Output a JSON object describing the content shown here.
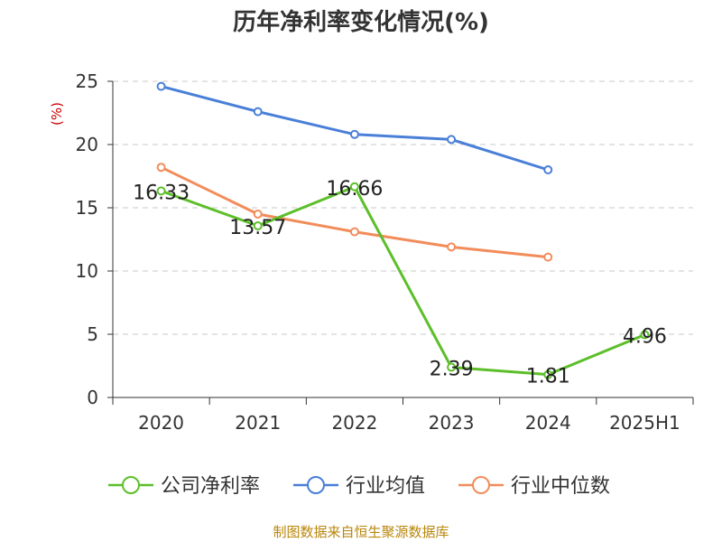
{
  "chart_data": {
    "type": "line",
    "title": "历年净利率变化情况(%)",
    "ylabel": "(%)",
    "xlabel": "",
    "categories": [
      "2020",
      "2021",
      "2022",
      "2023",
      "2024",
      "2025H1"
    ],
    "ylim": [
      0,
      25
    ],
    "yticks": [
      "0",
      "5",
      "10",
      "15",
      "20",
      "25"
    ],
    "grid": true,
    "legend_position": "bottom",
    "series": [
      {
        "name": "公司净利率",
        "color": "#5cbf2a",
        "values": [
          16.33,
          13.57,
          16.66,
          2.39,
          1.81,
          4.96
        ],
        "labels": [
          "16.33",
          "13.57",
          "16.66",
          "2.39",
          "1.81",
          "4.96"
        ]
      },
      {
        "name": "行业均值",
        "color": "#4a7fd8",
        "values": [
          24.6,
          22.6,
          20.8,
          20.4,
          18.0,
          null
        ]
      },
      {
        "name": "行业中位数",
        "color": "#f28c5a",
        "values": [
          18.2,
          14.5,
          13.1,
          11.9,
          11.1,
          null
        ]
      }
    ]
  },
  "source_text": "制图数据来自恒生聚源数据库"
}
